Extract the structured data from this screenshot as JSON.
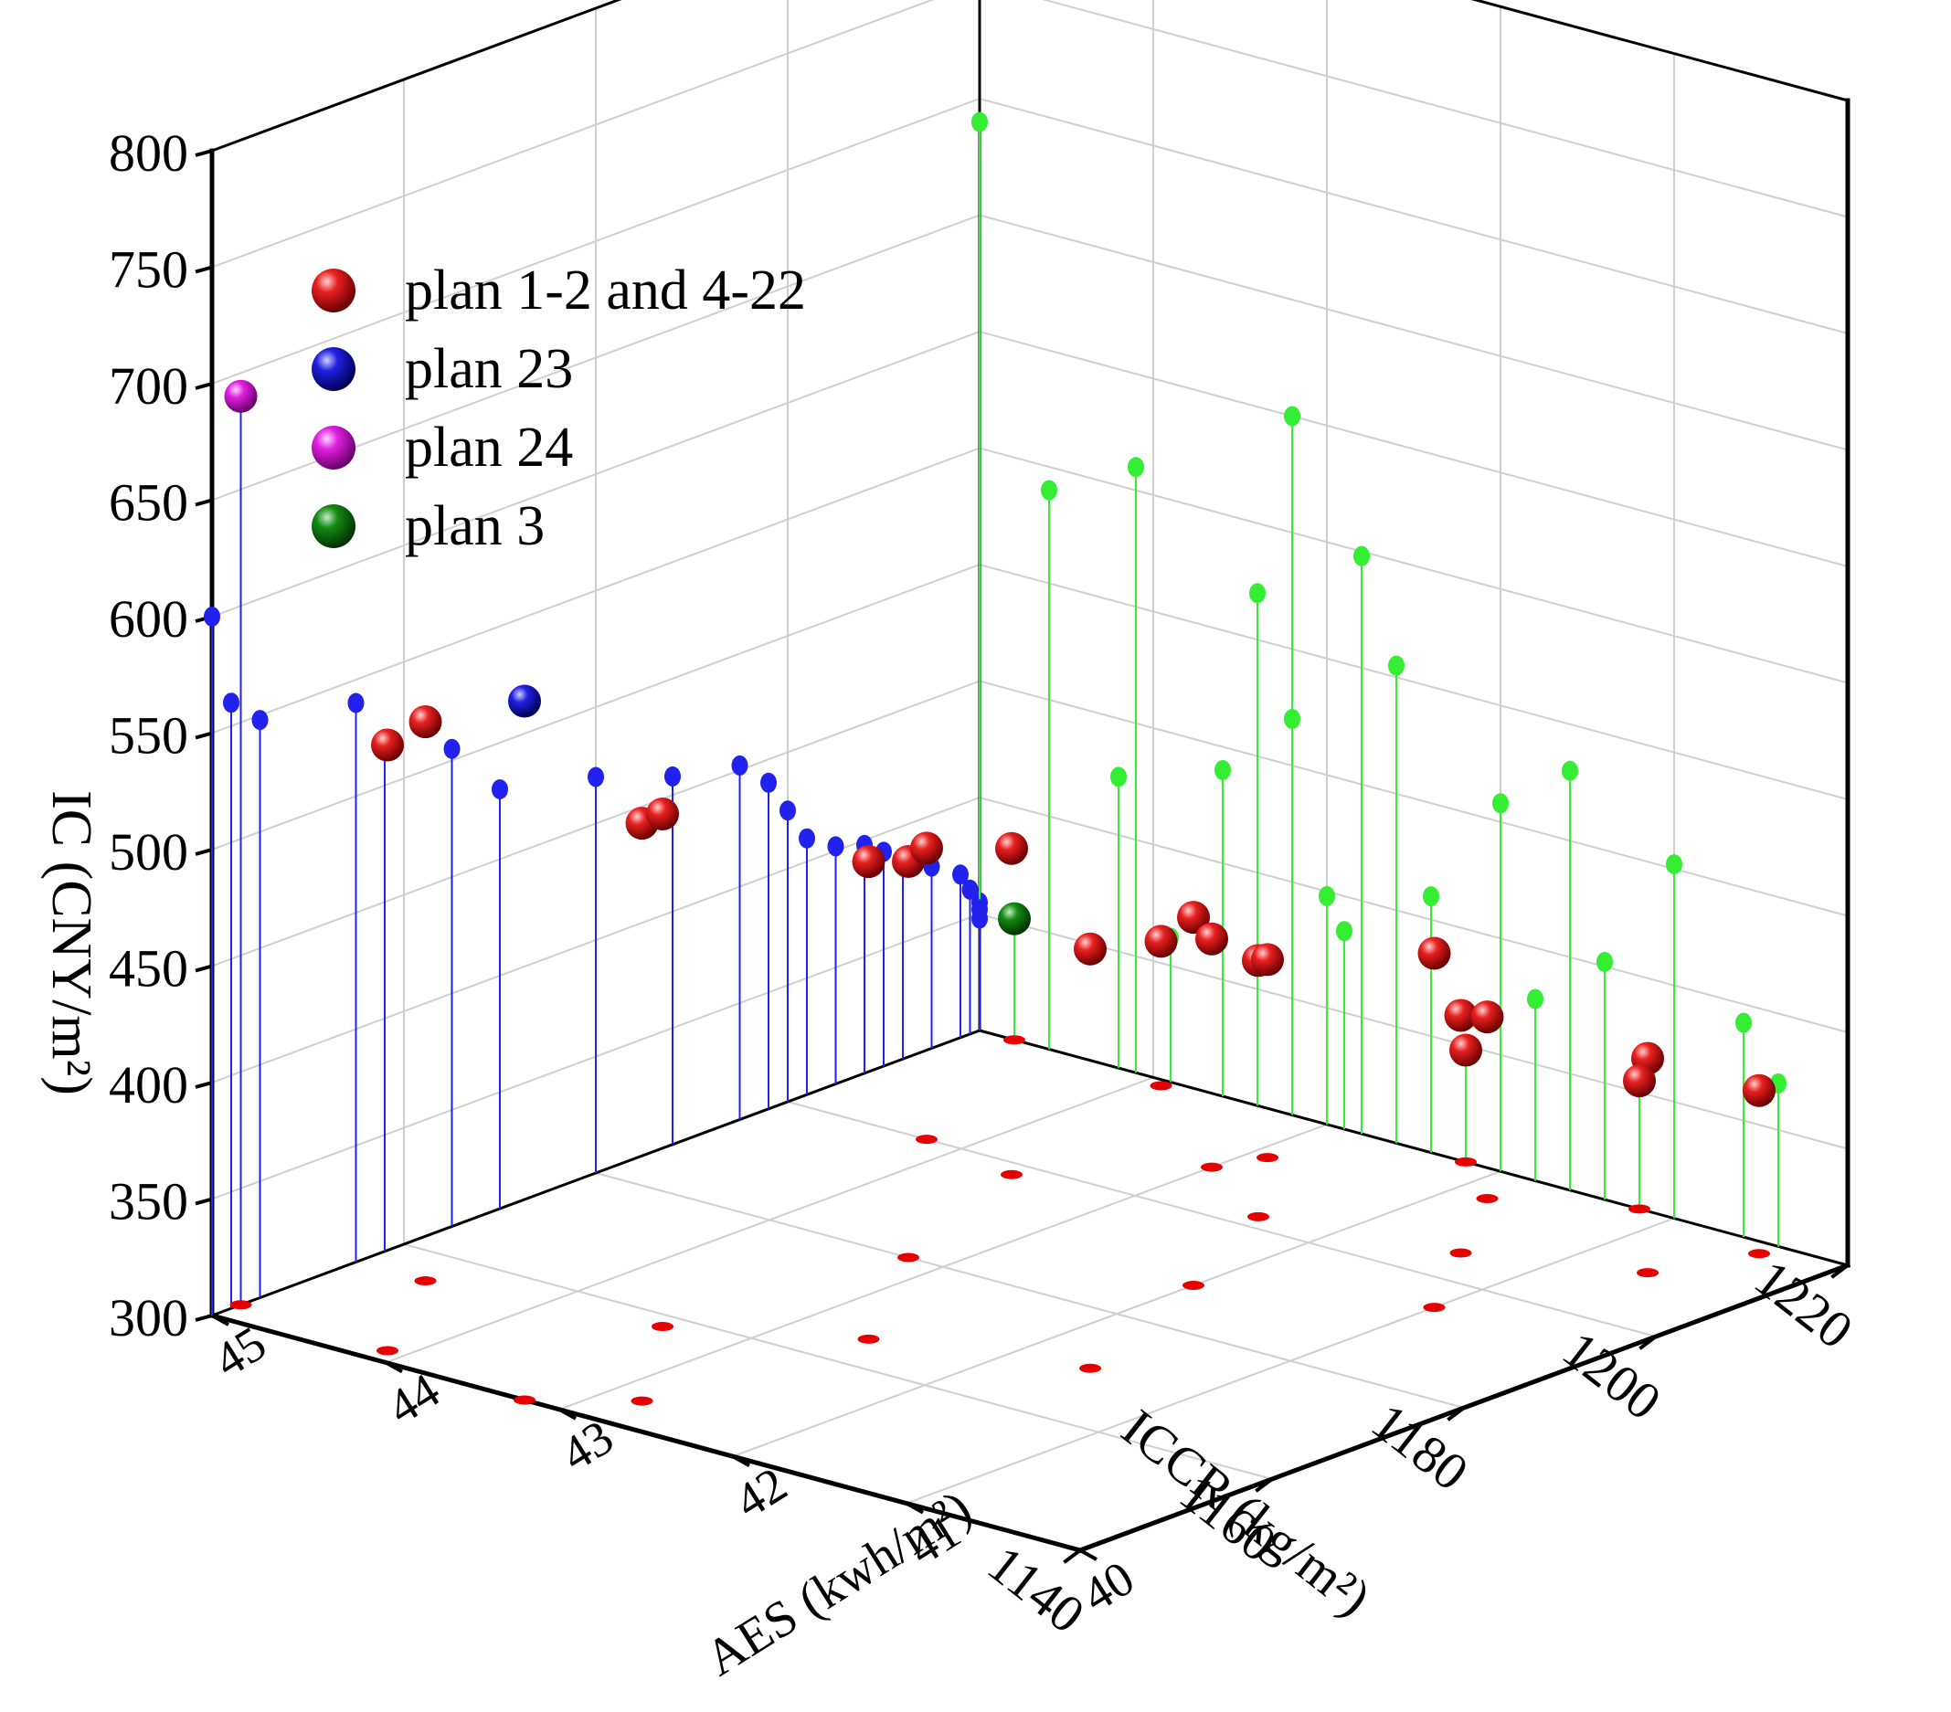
{
  "chart_data": {
    "type": "scatter3d",
    "title": "",
    "x_axis": {
      "label": "ICCR (kg/m²)",
      "range": [
        1140,
        1220
      ],
      "ticks": [
        "1140",
        "1160",
        "1180",
        "1200",
        "1220"
      ]
    },
    "y_axis": {
      "label": "AES (kwh/m²)",
      "range": [
        40,
        45
      ],
      "ticks": [
        "40",
        "41",
        "42",
        "43",
        "44",
        "45"
      ]
    },
    "z_axis": {
      "label": "IC (CNY/m²)",
      "range": [
        300,
        800
      ],
      "ticks": [
        "300",
        "350",
        "400",
        "450",
        "500",
        "550",
        "600",
        "650",
        "700",
        "750",
        "800"
      ]
    },
    "grid": true,
    "legend_position": "top-left",
    "projections": {
      "xz_wall": {
        "color": "#2222ee",
        "description": "drop lines onto ICCR–IC back wall"
      },
      "yz_wall": {
        "color": "#33ee33",
        "description": "drop lines onto AES–IC side wall"
      },
      "xy_floor": {
        "color": "#e60000",
        "description": "floor projection"
      }
    },
    "series": [
      {
        "name": "plan 1-2 and 4-22",
        "color": "#e01010",
        "points": [
          {
            "x": 1142,
            "y": 44.1,
            "z": 560
          },
          {
            "x": 1145,
            "y": 42.8,
            "z": 548
          },
          {
            "x": 1155,
            "y": 44.6,
            "z": 540
          },
          {
            "x": 1158,
            "y": 43.4,
            "z": 520
          },
          {
            "x": 1165,
            "y": 42.6,
            "z": 505
          },
          {
            "x": 1170,
            "y": 41.6,
            "z": 480
          },
          {
            "x": 1180,
            "y": 43.2,
            "z": 470
          },
          {
            "x": 1188,
            "y": 42.0,
            "z": 458
          },
          {
            "x": 1195,
            "y": 41.0,
            "z": 452
          },
          {
            "x": 1198,
            "y": 43.6,
            "z": 440
          },
          {
            "x": 1200,
            "y": 44.2,
            "z": 425
          },
          {
            "x": 1202,
            "y": 42.4,
            "z": 410
          },
          {
            "x": 1205,
            "y": 41.4,
            "z": 402
          },
          {
            "x": 1208,
            "y": 43.0,
            "z": 398
          },
          {
            "x": 1210,
            "y": 40.6,
            "z": 392
          },
          {
            "x": 1212,
            "y": 42.9,
            "z": 385
          },
          {
            "x": 1215,
            "y": 41.8,
            "z": 378
          },
          {
            "x": 1218,
            "y": 40.4,
            "z": 370
          },
          {
            "x": 1219,
            "y": 43.9,
            "z": 362
          },
          {
            "x": 1220,
            "y": 41.2,
            "z": 355
          },
          {
            "x": 1220,
            "y": 42.2,
            "z": 348
          }
        ]
      },
      {
        "name": "plan 23",
        "color": "#1010d0",
        "points": [
          {
            "x": 1140,
            "y": 43.2,
            "z": 600
          }
        ]
      },
      {
        "name": "plan 24",
        "color": "#e020e0",
        "points": [
          {
            "x": 1143,
            "y": 45.0,
            "z": 690
          }
        ]
      },
      {
        "name": "plan 3",
        "color": "#0a6a0a",
        "points": [
          {
            "x": 1220,
            "y": 44.8,
            "z": 352
          }
        ]
      }
    ]
  }
}
